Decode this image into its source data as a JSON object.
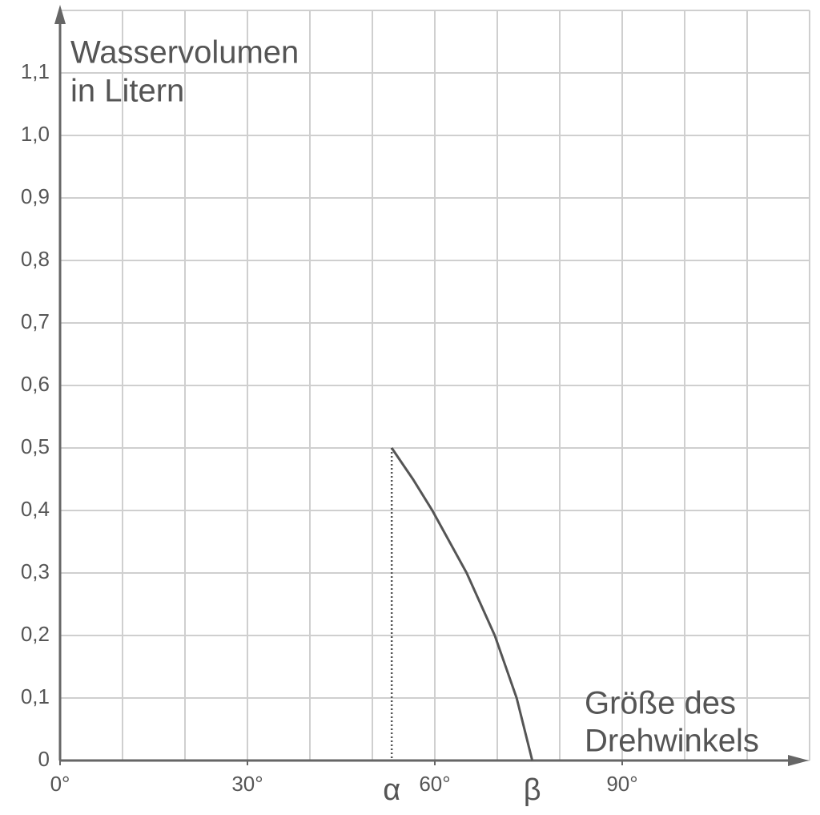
{
  "chart_data": {
    "type": "line",
    "y_label": [
      "Wasservolumen",
      "in Litern"
    ],
    "x_label": [
      "Größe des",
      "Drehwinkels"
    ],
    "xlim": [
      0,
      120
    ],
    "ylim": [
      0,
      1.2
    ],
    "xticks": [
      {
        "value": 0,
        "label": "0°"
      },
      {
        "value": 30,
        "label": "30°"
      },
      {
        "value": 60,
        "label": "60°"
      },
      {
        "value": 90,
        "label": "90°"
      }
    ],
    "yticks": [
      0,
      {
        "value": 0.1,
        "label": "0,1"
      },
      {
        "value": 0.2,
        "label": "0,2"
      },
      {
        "value": 0.3,
        "label": "0,3"
      },
      {
        "value": 0.4,
        "label": "0,4"
      },
      {
        "value": 0.5,
        "label": "0,5"
      },
      {
        "value": 0.6,
        "label": "0,6"
      },
      {
        "value": 0.7,
        "label": "0,7"
      },
      {
        "value": 0.8,
        "label": "0,8"
      },
      {
        "value": 0.9,
        "label": "0,9"
      },
      {
        "value": 1.0,
        "label": "1,0"
      },
      {
        "value": 1.1,
        "label": "1,1"
      }
    ],
    "xgrid": [
      10,
      20,
      30,
      40,
      50,
      60,
      70,
      80,
      90,
      100,
      110,
      120
    ],
    "grid": true,
    "series": [
      {
        "color": "#555555",
        "x": [
          53.1,
          56.5,
          59.6,
          65.1,
          69.6,
          73.1,
          75.6
        ],
        "values": [
          0.5,
          0.45,
          0.4,
          0.3,
          0.2,
          0.1,
          0
        ]
      }
    ],
    "annotations": [
      {
        "text": "α",
        "x": 53.1
      },
      {
        "text": "β",
        "x": 75.6
      }
    ]
  }
}
